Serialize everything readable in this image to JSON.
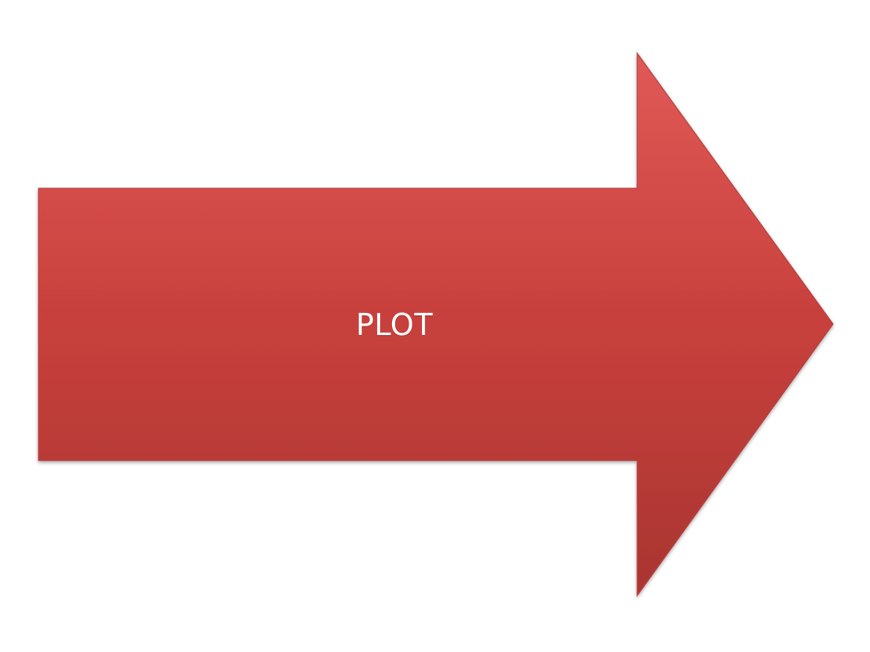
{
  "diagram": {
    "shape": "right-arrow",
    "label": "PLOT",
    "colors": {
      "fill_top": "#dd4744",
      "fill_bottom": "#a93531",
      "edge": "#b8403d",
      "text": "#ffffff",
      "background": "#ffffff"
    }
  }
}
